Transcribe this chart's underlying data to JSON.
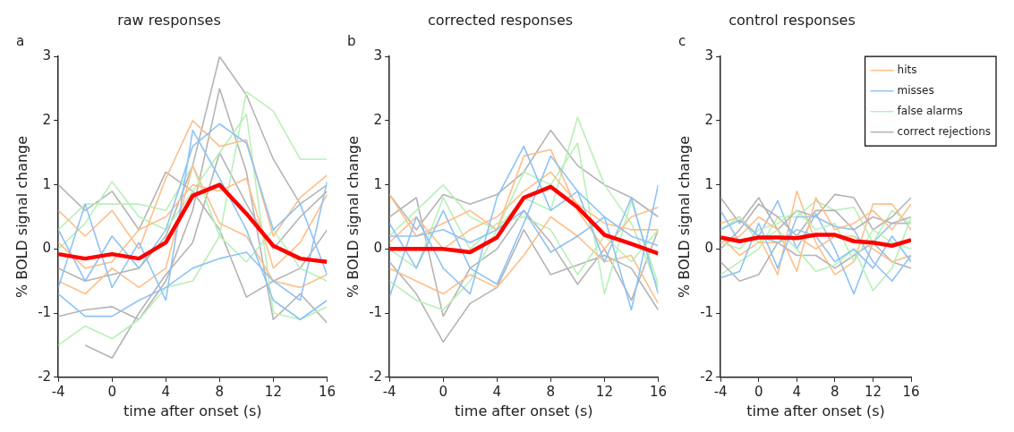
{
  "chart_data": [
    {
      "type": "line",
      "title": "raw responses",
      "annotations": [
        "a"
      ],
      "xlabel": "time after onset (s)",
      "ylabel": "% BOLD signal change",
      "x": [
        -4,
        -2,
        0,
        2,
        4,
        6,
        8,
        10,
        12,
        14,
        16
      ],
      "xlim": [
        -4,
        16
      ],
      "xticks": [
        -4,
        0,
        4,
        8,
        12,
        16
      ],
      "ylim": [
        -2,
        3
      ],
      "yticks": [
        -2,
        -1,
        0,
        1,
        2,
        3
      ],
      "grid": false,
      "legend": false,
      "marker": "none",
      "line_style": "solid",
      "series": [
        {
          "color": "#b4b4b4",
          "values": [
            -0.3,
            -0.5,
            -0.4,
            -0.3,
            0.2,
            1.3,
            3.0,
            2.4,
            1.4,
            0.7,
            1.0
          ]
        },
        {
          "color": "#b4b4b4",
          "values": [
            -1.05,
            -0.95,
            -0.9,
            -1.1,
            -0.5,
            0.6,
            2.5,
            1.2,
            -1.1,
            -0.7,
            -1.15
          ]
        },
        {
          "color": "#b4b4b4",
          "values": [
            1.0,
            0.6,
            0.9,
            0.3,
            1.2,
            0.9,
            0.3,
            -0.75,
            -0.5,
            -0.3,
            0.3
          ]
        },
        {
          "color": "#b4b4b4",
          "values": [
            null,
            -1.5,
            -1.7,
            -1.0,
            -0.4,
            0.1,
            1.5,
            0.7,
            0.0,
            0.5,
            0.9
          ]
        },
        {
          "color": "#b8f0b8",
          "values": [
            -1.5,
            -1.2,
            -1.4,
            -1.1,
            -0.6,
            -0.5,
            0.2,
            2.45,
            2.15,
            1.4,
            1.4
          ]
        },
        {
          "color": "#b8f0b8",
          "values": [
            0.0,
            0.4,
            1.05,
            0.5,
            0.3,
            0.9,
            1.5,
            2.1,
            -1.0,
            -1.1,
            -0.9
          ]
        },
        {
          "color": "#b8f0b8",
          "values": [
            0.3,
            0.7,
            0.7,
            0.7,
            0.6,
            1.3,
            0.2,
            -0.2,
            0.3,
            -0.3,
            -0.5
          ]
        },
        {
          "color": "#fdbf8a",
          "values": [
            0.6,
            0.2,
            0.6,
            0.0,
            1.1,
            2.0,
            1.6,
            1.7,
            0.2,
            0.8,
            1.15
          ]
        },
        {
          "color": "#fdbf8a",
          "values": [
            -0.5,
            -0.7,
            -0.3,
            -0.6,
            -0.3,
            1.3,
            0.4,
            0.2,
            -0.5,
            -0.6,
            -0.4
          ]
        },
        {
          "color": "#fdbf8a",
          "values": [
            0.1,
            -0.3,
            -0.2,
            0.3,
            0.5,
            1.0,
            0.9,
            1.1,
            -0.3,
            0.1,
            0.85
          ]
        },
        {
          "color": "#8fc3f3",
          "values": [
            -0.6,
            0.7,
            -0.6,
            0.1,
            -0.8,
            1.85,
            1.1,
            0.3,
            -0.8,
            -1.1,
            -0.8
          ]
        },
        {
          "color": "#8fc3f3",
          "values": [
            -0.7,
            -1.05,
            -1.05,
            -0.8,
            -0.6,
            -0.3,
            -0.15,
            -0.05,
            -0.5,
            -0.8,
            1.05
          ]
        },
        {
          "color": "#8fc3f3",
          "values": [
            0.3,
            -0.5,
            0.2,
            -0.3,
            0.3,
            1.6,
            1.95,
            1.65,
            0.3,
            0.7,
            -0.4
          ]
        },
        {
          "color": "#ff0000",
          "values": [
            -0.08,
            -0.15,
            -0.08,
            -0.15,
            0.1,
            0.83,
            1.0,
            0.55,
            0.05,
            -0.15,
            -0.2
          ]
        }
      ]
    },
    {
      "type": "line",
      "title": "corrected responses",
      "annotations": [
        "b"
      ],
      "xlabel": "time after onset (s)",
      "ylabel": "% BOLD signal change",
      "x": [
        -4,
        -2,
        0,
        2,
        4,
        6,
        8,
        10,
        12,
        14,
        16
      ],
      "xlim": [
        -4,
        16
      ],
      "xticks": [
        -4,
        0,
        4,
        8,
        12,
        16
      ],
      "ylim": [
        -2,
        3
      ],
      "yticks": [
        -2,
        -1,
        0,
        1,
        2,
        3
      ],
      "grid": false,
      "legend": false,
      "marker": "none",
      "line_style": "solid",
      "series": [
        {
          "color": "#b4b4b4",
          "values": [
            0.85,
            0.3,
            0.85,
            0.7,
            0.85,
            1.2,
            1.85,
            1.3,
            1.0,
            0.8,
            0.5
          ]
        },
        {
          "color": "#b4b4b4",
          "values": [
            -0.2,
            -0.7,
            -1.45,
            -0.85,
            -0.6,
            0.3,
            -0.4,
            -0.25,
            -0.1,
            -0.3,
            -0.95
          ]
        },
        {
          "color": "#b4b4b4",
          "values": [
            0.5,
            0.8,
            -1.05,
            -0.3,
            0.0,
            0.6,
            0.1,
            -0.55,
            0.0,
            -0.8,
            0.3
          ]
        },
        {
          "color": "#b8f0b8",
          "values": [
            -0.5,
            -0.8,
            -0.95,
            -0.5,
            0.3,
            0.8,
            0.6,
            2.05,
            1.0,
            0.4,
            -0.6
          ]
        },
        {
          "color": "#b8f0b8",
          "values": [
            0.2,
            0.6,
            1.0,
            0.5,
            0.3,
            1.2,
            1.0,
            1.65,
            -0.7,
            0.75,
            -0.55
          ]
        },
        {
          "color": "#b8f0b8",
          "values": [
            0.0,
            -0.3,
            0.8,
            0.0,
            0.4,
            0.5,
            0.3,
            -0.4,
            0.2,
            -0.2,
            0.3
          ]
        },
        {
          "color": "#fdbf8a",
          "values": [
            0.85,
            0.2,
            0.4,
            0.6,
            0.3,
            1.45,
            1.55,
            0.6,
            0.0,
            0.5,
            0.65
          ]
        },
        {
          "color": "#fdbf8a",
          "values": [
            -0.3,
            -0.5,
            -0.7,
            -0.4,
            -0.6,
            -0.1,
            0.5,
            0.2,
            -0.2,
            -0.1,
            -0.85
          ]
        },
        {
          "color": "#fdbf8a",
          "values": [
            0.1,
            0.5,
            0.0,
            0.3,
            0.5,
            0.9,
            1.2,
            0.7,
            0.4,
            0.3,
            0.3
          ]
        },
        {
          "color": "#8fc3f3",
          "values": [
            -0.75,
            0.5,
            -0.3,
            -0.7,
            0.8,
            1.6,
            0.6,
            0.9,
            0.5,
            -0.95,
            1.0
          ]
        },
        {
          "color": "#8fc3f3",
          "values": [
            0.4,
            -0.3,
            0.6,
            -0.3,
            -0.55,
            0.4,
            1.45,
            0.9,
            -0.2,
            0.8,
            -0.7
          ]
        },
        {
          "color": "#8fc3f3",
          "values": [
            0.2,
            0.2,
            0.3,
            0.1,
            0.3,
            0.6,
            -0.05,
            0.2,
            0.5,
            0.2,
            0.05
          ]
        },
        {
          "color": "#ff0000",
          "values": [
            0.0,
            0.0,
            0.0,
            -0.05,
            0.18,
            0.8,
            0.97,
            0.65,
            0.22,
            0.08,
            -0.07
          ]
        }
      ]
    },
    {
      "type": "line",
      "title": "control responses",
      "annotations": [
        "c"
      ],
      "xlabel": "time after onset (s)",
      "ylabel": "% BOLD signal change",
      "x": [
        -4,
        -2,
        0,
        2,
        4,
        6,
        8,
        10,
        12,
        14,
        16
      ],
      "xlim": [
        -4,
        16
      ],
      "xticks": [
        -4,
        0,
        4,
        8,
        12,
        16
      ],
      "ylim": [
        -2,
        3
      ],
      "yticks": [
        -2,
        -1,
        0,
        1,
        2,
        3
      ],
      "grid": false,
      "legend": "top right",
      "marker": "none",
      "line_style": "solid",
      "series": [
        {
          "name": "hits",
          "color": "#fdbf8a",
          "values": [
            0.4,
            0.5,
            0.2,
            -0.4,
            0.9,
            0.1,
            -0.4,
            -0.2,
            0.7,
            0.7,
            0.3
          ]
        },
        {
          "name": "misses",
          "color": "#8fc3f3",
          "values": [
            0.6,
            0.1,
            0.2,
            0.75,
            0.0,
            0.55,
            0.0,
            -0.7,
            0.1,
            0.4,
            0.4
          ]
        },
        {
          "name": "false alarms",
          "color": "#b8f0b8",
          "values": [
            -0.4,
            -0.2,
            0.0,
            0.5,
            0.5,
            0.75,
            0.6,
            0.65,
            0.1,
            0.6,
            0.4
          ]
        },
        {
          "name": "correct rejections",
          "color": "#b4b4b4",
          "values": [
            0.8,
            0.4,
            0.8,
            0.3,
            0.6,
            0.5,
            0.85,
            0.8,
            0.3,
            0.5,
            0.8
          ]
        },
        {
          "color": "#b4b4b4",
          "values": [
            -0.2,
            -0.5,
            -0.4,
            0.1,
            -0.1,
            -0.1,
            -0.3,
            -0.1,
            0.1,
            -0.2,
            -0.3
          ]
        },
        {
          "color": "#b4b4b4",
          "values": [
            0.0,
            0.3,
            0.7,
            0.5,
            0.2,
            0.6,
            0.6,
            0.3,
            0.5,
            0.4,
            0.5
          ]
        },
        {
          "color": "#b8f0b8",
          "values": [
            0.3,
            0.5,
            0.1,
            0.3,
            0.0,
            -0.35,
            -0.25,
            0.0,
            -0.65,
            -0.3,
            0.5
          ]
        },
        {
          "color": "#b8f0b8",
          "values": [
            0.1,
            0.0,
            0.3,
            0.4,
            0.6,
            0.3,
            0.4,
            -0.2,
            0.3,
            0.1,
            0.0
          ]
        },
        {
          "color": "#fdbf8a",
          "values": [
            0.1,
            0.2,
            0.5,
            0.3,
            -0.35,
            0.8,
            0.3,
            0.4,
            0.6,
            0.3,
            0.7
          ]
        },
        {
          "color": "#fdbf8a",
          "values": [
            0.2,
            -0.1,
            0.1,
            0.1,
            0.2,
            0.0,
            0.2,
            0.2,
            0.0,
            -0.2,
            -0.1
          ]
        },
        {
          "color": "#8fc3f3",
          "values": [
            -0.45,
            -0.35,
            0.4,
            -0.3,
            0.5,
            0.5,
            0.35,
            0.3,
            -0.2,
            -0.5,
            -0.1
          ]
        },
        {
          "color": "#8fc3f3",
          "values": [
            0.3,
            0.45,
            0.2,
            0.1,
            0.3,
            0.2,
            -0.2,
            0.0,
            -0.3,
            0.2,
            -0.2
          ]
        },
        {
          "color": "#ff0000",
          "values": [
            0.18,
            0.12,
            0.18,
            0.18,
            0.17,
            0.22,
            0.22,
            0.12,
            0.1,
            0.05,
            0.14
          ]
        }
      ]
    }
  ]
}
